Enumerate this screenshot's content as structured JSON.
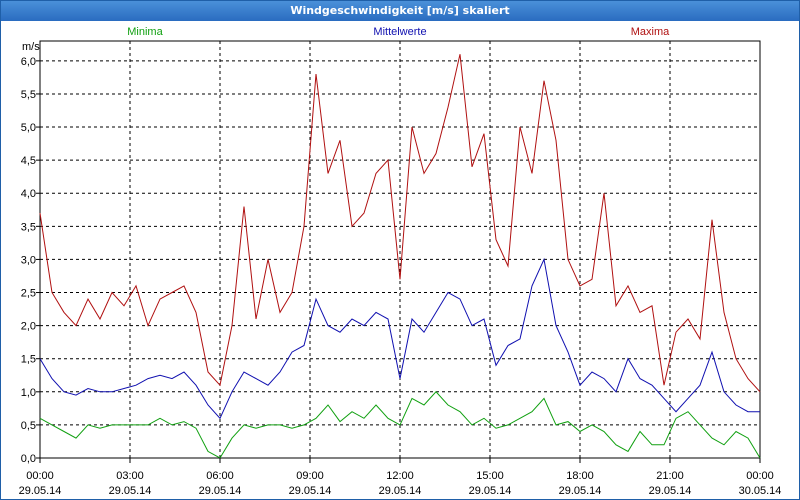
{
  "window": {
    "title": "Windgeschwindigkeit [m/s] skaliert"
  },
  "chart_data": {
    "type": "line",
    "title": "Windgeschwindigkeit [m/s] skaliert",
    "ylabel": "m/s",
    "ylim": [
      0,
      6.3
    ],
    "yticks": [
      "0,0",
      "0,5",
      "1,0",
      "1,5",
      "2,0",
      "2,5",
      "3,0",
      "3,5",
      "4,0",
      "4,5",
      "5,0",
      "5,5",
      "6,0"
    ],
    "xlim": [
      0,
      24
    ],
    "xticks": [
      {
        "time": "00:00",
        "date": "29.05.14"
      },
      {
        "time": "03:00",
        "date": "29.05.14"
      },
      {
        "time": "06:00",
        "date": "29.05.14"
      },
      {
        "time": "09:00",
        "date": "29.05.14"
      },
      {
        "time": "12:00",
        "date": "29.05.14"
      },
      {
        "time": "15:00",
        "date": "29.05.14"
      },
      {
        "time": "18:00",
        "date": "29.05.14"
      },
      {
        "time": "21:00",
        "date": "29.05.14"
      },
      {
        "time": "00:00",
        "date": "30.05.14"
      }
    ],
    "grid": true,
    "legend_placement": "top",
    "x_hours": [
      0,
      0.4,
      0.8,
      1.2,
      1.6,
      2.0,
      2.4,
      2.8,
      3.2,
      3.6,
      4.0,
      4.4,
      4.8,
      5.2,
      5.6,
      6.0,
      6.4,
      6.8,
      7.2,
      7.6,
      8.0,
      8.4,
      8.8,
      9.2,
      9.6,
      10.0,
      10.4,
      10.8,
      11.2,
      11.6,
      12.0,
      12.4,
      12.8,
      13.2,
      13.6,
      14.0,
      14.4,
      14.8,
      15.2,
      15.6,
      16.0,
      16.4,
      16.8,
      17.2,
      17.6,
      18.0,
      18.4,
      18.8,
      19.2,
      19.6,
      20.0,
      20.4,
      20.8,
      21.2,
      21.6,
      22.0,
      22.4,
      22.8,
      23.2,
      23.6,
      24.0
    ],
    "series": [
      {
        "name": "Minima",
        "color": "#10a010",
        "values": [
          0.6,
          0.5,
          0.4,
          0.3,
          0.5,
          0.45,
          0.5,
          0.5,
          0.5,
          0.5,
          0.6,
          0.5,
          0.55,
          0.45,
          0.1,
          0.0,
          0.3,
          0.5,
          0.45,
          0.5,
          0.5,
          0.45,
          0.5,
          0.6,
          0.8,
          0.55,
          0.7,
          0.6,
          0.8,
          0.6,
          0.5,
          0.9,
          0.8,
          1.0,
          0.8,
          0.7,
          0.5,
          0.6,
          0.45,
          0.5,
          0.6,
          0.7,
          0.9,
          0.5,
          0.55,
          0.4,
          0.5,
          0.4,
          0.2,
          0.1,
          0.4,
          0.2,
          0.2,
          0.6,
          0.7,
          0.5,
          0.3,
          0.2,
          0.4,
          0.3,
          0.0
        ]
      },
      {
        "name": "Mittelwerte",
        "color": "#1010b0",
        "values": [
          1.5,
          1.2,
          1.0,
          0.95,
          1.05,
          1.0,
          1.0,
          1.05,
          1.1,
          1.2,
          1.25,
          1.2,
          1.3,
          1.1,
          0.8,
          0.6,
          1.0,
          1.3,
          1.2,
          1.1,
          1.3,
          1.6,
          1.7,
          2.4,
          2.0,
          1.9,
          2.1,
          2.0,
          2.2,
          2.1,
          1.2,
          2.1,
          1.9,
          2.2,
          2.5,
          2.4,
          2.0,
          2.1,
          1.4,
          1.7,
          1.8,
          2.6,
          3.0,
          2.0,
          1.6,
          1.1,
          1.3,
          1.2,
          1.0,
          1.5,
          1.2,
          1.1,
          0.9,
          0.7,
          0.9,
          1.1,
          1.6,
          1.0,
          0.8,
          0.7,
          0.7
        ]
      },
      {
        "name": "Maxima",
        "color": "#b01010",
        "values": [
          3.7,
          2.5,
          2.2,
          2.0,
          2.4,
          2.1,
          2.5,
          2.3,
          2.6,
          2.0,
          2.4,
          2.5,
          2.6,
          2.2,
          1.3,
          1.1,
          2.0,
          3.8,
          2.1,
          3.0,
          2.2,
          2.5,
          3.5,
          5.8,
          4.3,
          4.8,
          3.5,
          3.7,
          4.3,
          4.5,
          2.7,
          5.0,
          4.3,
          4.6,
          5.3,
          6.1,
          4.4,
          4.9,
          3.3,
          2.9,
          5.0,
          4.3,
          5.7,
          4.8,
          3.0,
          2.6,
          2.7,
          4.0,
          2.3,
          2.6,
          2.2,
          2.3,
          1.1,
          1.9,
          2.1,
          1.8,
          3.6,
          2.2,
          1.5,
          1.2,
          1.0
        ]
      }
    ]
  }
}
